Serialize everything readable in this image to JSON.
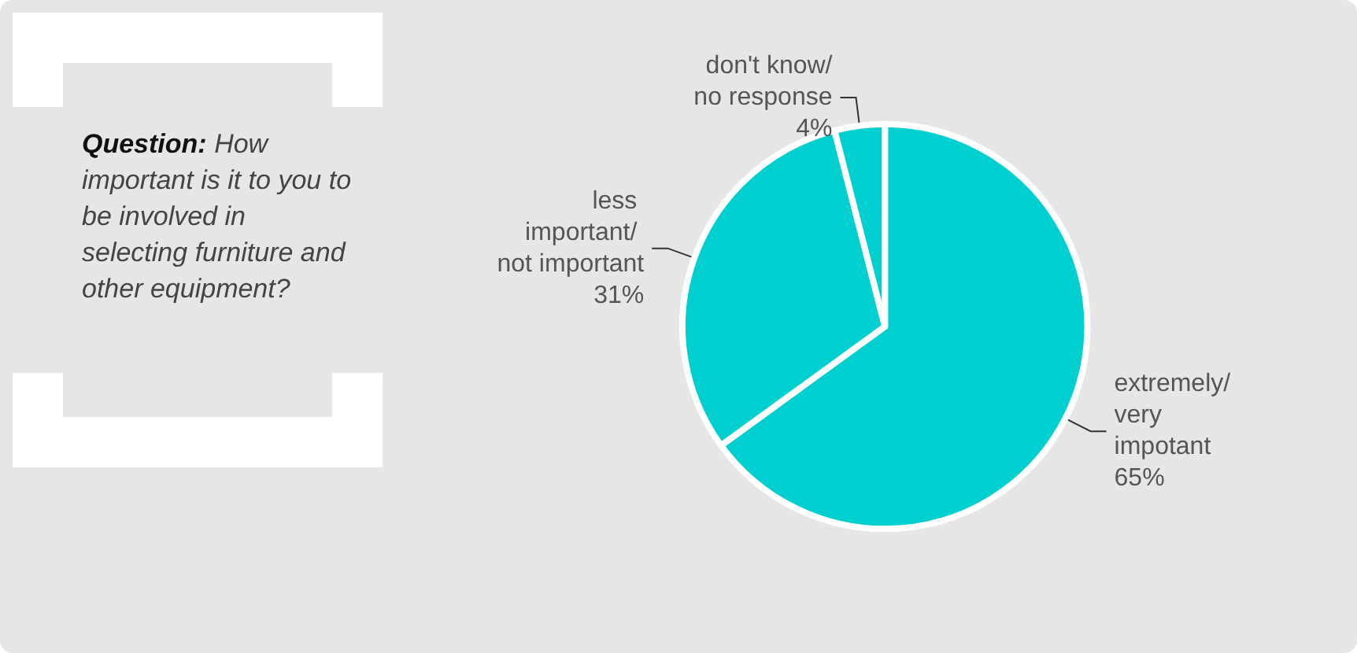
{
  "chart_data": {
    "type": "pie",
    "title": "Question: How important is it to you to be involved in selecting furniture and other equipment?",
    "categories": [
      "extremely/ very impotant",
      "less important/ not important",
      "don't know/no response"
    ],
    "values": [
      65,
      31,
      4
    ],
    "value_labels": [
      "65%",
      "31%",
      "4%"
    ],
    "colors": [
      "#00cfcf",
      "#00cfcf",
      "#00cfcf"
    ],
    "legend": false
  }
}
